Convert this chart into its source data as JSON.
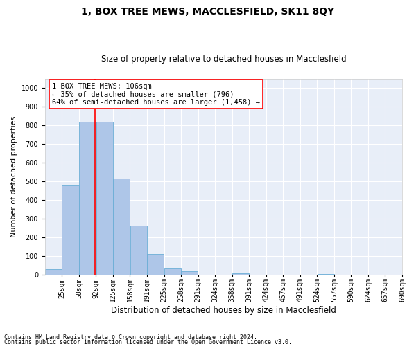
{
  "title": "1, BOX TREE MEWS, MACCLESFIELD, SK11 8QY",
  "subtitle": "Size of property relative to detached houses in Macclesfield",
  "xlabel": "Distribution of detached houses by size in Macclesfield",
  "ylabel": "Number of detached properties",
  "footnote1": "Contains HM Land Registry data © Crown copyright and database right 2024.",
  "footnote2": "Contains public sector information licensed under the Open Government Licence v3.0.",
  "annotation_line1": "1 BOX TREE MEWS: 106sqm",
  "annotation_line2": "← 35% of detached houses are smaller (796)",
  "annotation_line3": "64% of semi-detached houses are larger (1,458) →",
  "bar_color": "#aec6e8",
  "bar_edge_color": "#6baed6",
  "ref_line_color": "red",
  "ref_line_x": 106,
  "categories": [
    "25sqm",
    "58sqm",
    "92sqm",
    "125sqm",
    "158sqm",
    "191sqm",
    "225sqm",
    "258sqm",
    "291sqm",
    "324sqm",
    "358sqm",
    "391sqm",
    "424sqm",
    "457sqm",
    "491sqm",
    "524sqm",
    "557sqm",
    "590sqm",
    "624sqm",
    "657sqm",
    "690sqm"
  ],
  "bin_width": 33,
  "bin_starts": [
    8.5,
    41.5,
    74.5,
    107.5,
    140.5,
    173.5,
    206.5,
    239.5,
    272.5,
    305.5,
    338.5,
    371.5,
    404.5,
    437.5,
    470.5,
    503.5,
    536.5,
    569.5,
    602.5,
    635.5,
    668.5
  ],
  "bin_edges": [
    8.5,
    41.5,
    74.5,
    107.5,
    140.5,
    173.5,
    206.5,
    239.5,
    272.5,
    305.5,
    338.5,
    371.5,
    404.5,
    437.5,
    470.5,
    503.5,
    536.5,
    569.5,
    602.5,
    635.5,
    668.5,
    701.5
  ],
  "values": [
    28,
    477,
    820,
    820,
    517,
    263,
    111,
    35,
    18,
    0,
    0,
    7,
    0,
    0,
    0,
    0,
    5,
    0,
    0,
    0,
    0
  ],
  "ylim": [
    0,
    1050
  ],
  "xlim": [
    8.5,
    701.5
  ],
  "yticks": [
    0,
    100,
    200,
    300,
    400,
    500,
    600,
    700,
    800,
    900,
    1000
  ],
  "bg_color": "#e8eef8",
  "grid_color": "#ffffff",
  "annotation_box_color": "white",
  "annotation_box_edge": "red",
  "title_fontsize": 10,
  "subtitle_fontsize": 8.5,
  "ylabel_fontsize": 8,
  "xlabel_fontsize": 8.5,
  "tick_fontsize": 7,
  "annotation_fontsize": 7.5,
  "footnote_fontsize": 6
}
